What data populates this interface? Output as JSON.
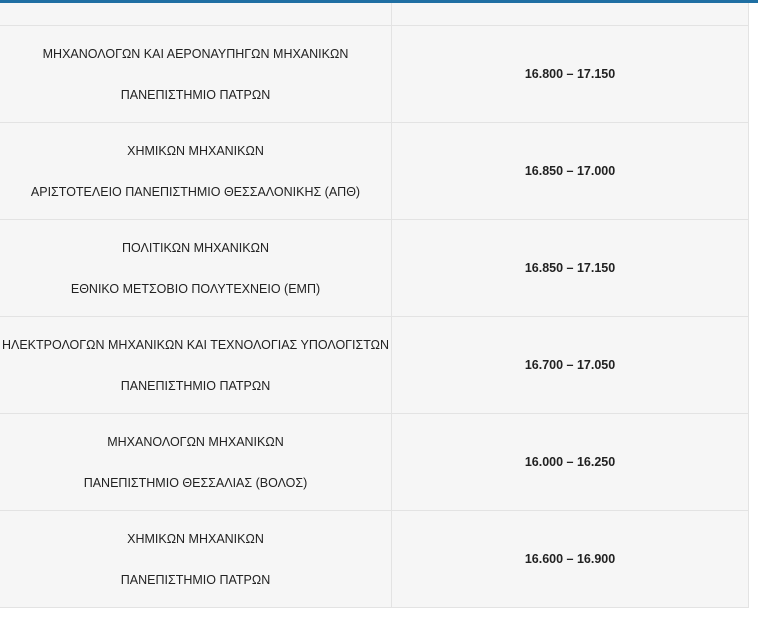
{
  "accent_color": "#1f6fa3",
  "rows": [
    {
      "department": "ΜΗΧΑΝΟΛΟΓΩΝ ΚΑΙ ΑΕΡΟΝΑΥΠΗΓΩΝ ΜΗΧΑΝΙΚΩΝ",
      "university": "ΠΑΝΕΠΙΣΤΗΜΙΟ ΠΑΤΡΩΝ",
      "range": "16.800 – 17.150"
    },
    {
      "department": "ΧΗΜΙΚΩΝ ΜΗΧΑΝΙΚΩΝ",
      "university": "ΑΡΙΣΤΟΤΕΛΕΙΟ ΠΑΝΕΠΙΣΤΗΜΙΟ ΘΕΣΣΑΛΟΝΙΚΗΣ (ΑΠΘ)",
      "range": "16.850 – 17.000"
    },
    {
      "department": "ΠΟΛΙΤΙΚΩΝ ΜΗΧΑΝΙΚΩΝ",
      "university": "ΕΘΝΙΚΟ ΜΕΤΣΟΒΙΟ ΠΟΛΥΤΕΧΝΕΙΟ (ΕΜΠ)",
      "range": "16.850 – 17.150"
    },
    {
      "department": "ΗΛΕΚΤΡΟΛΟΓΩΝ ΜΗΧΑΝΙΚΩΝ ΚΑΙ ΤΕΧΝΟΛΟΓΙΑΣ ΥΠΟΛΟΓΙΣΤΩΝ",
      "university": "ΠΑΝΕΠΙΣΤΗΜΙΟ ΠΑΤΡΩΝ",
      "range": "16.700 – 17.050"
    },
    {
      "department": "ΜΗΧΑΝΟΛΟΓΩΝ ΜΗΧΑΝΙΚΩΝ",
      "university": "ΠΑΝΕΠΙΣΤΗΜΙΟ ΘΕΣΣΑΛΙΑΣ (ΒΟΛΟΣ)",
      "range": "16.000 – 16.250"
    },
    {
      "department": "ΧΗΜΙΚΩΝ ΜΗΧΑΝΙΚΩΝ",
      "university": "ΠΑΝΕΠΙΣΤΗΜΙΟ ΠΑΤΡΩΝ",
      "range": "16.600 – 16.900"
    }
  ]
}
